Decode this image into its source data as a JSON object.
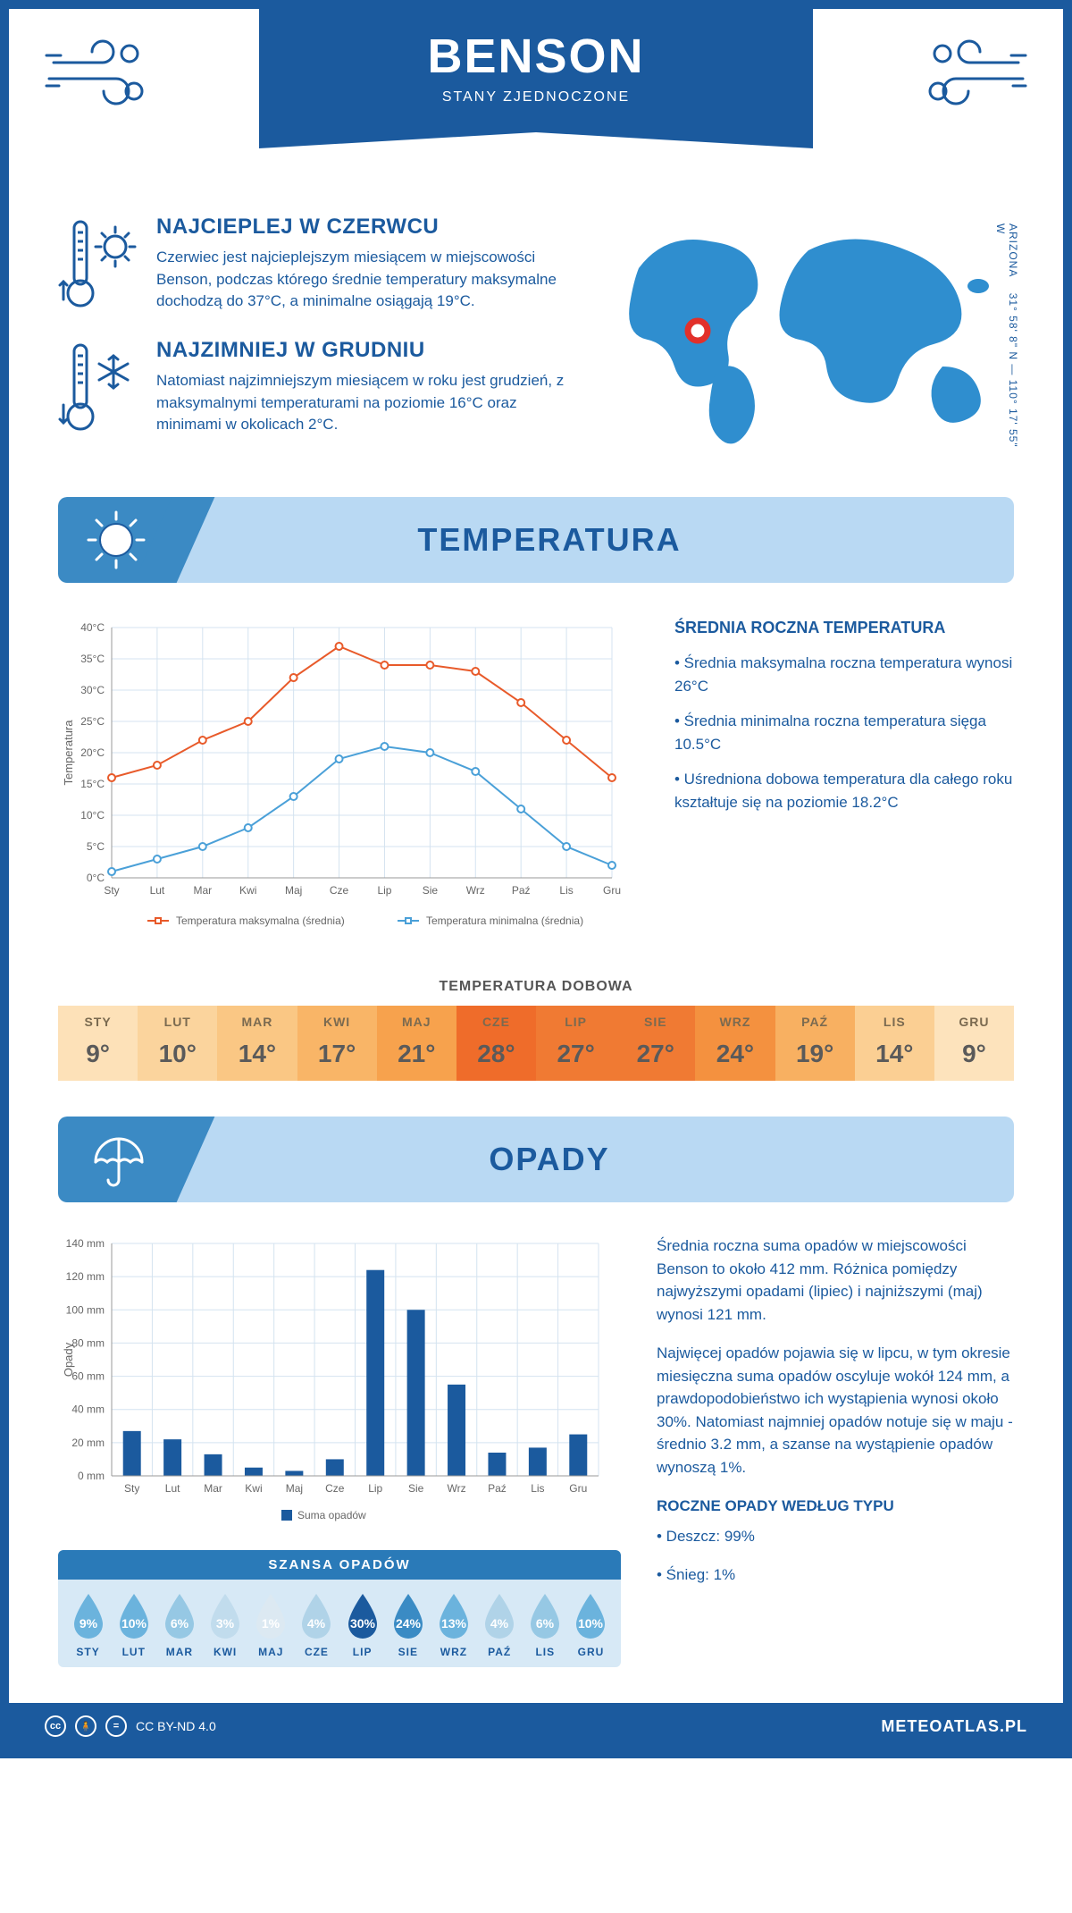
{
  "header": {
    "title": "BENSON",
    "subtitle": "STANY ZJEDNOCZONE"
  },
  "coords": "31° 58' 8\" N — 110° 17' 55\" W",
  "region": "ARIZONA",
  "hot": {
    "title": "NAJCIEPLEJ W CZERWCU",
    "text": "Czerwiec jest najcieplejszym miesiącem w miejscowości Benson, podczas którego średnie temperatury maksymalne dochodzą do 37°C, a minimalne osiągają 19°C."
  },
  "cold": {
    "title": "NAJZIMNIEJ W GRUDNIU",
    "text": "Natomiast najzimniejszym miesiącem w roku jest grudzień, z maksymalnymi temperaturami na poziomie 16°C oraz minimami w okolicach 2°C."
  },
  "temp_section": {
    "title": "TEMPERATURA"
  },
  "temp_chart": {
    "months": [
      "Sty",
      "Lut",
      "Mar",
      "Kwi",
      "Maj",
      "Cze",
      "Lip",
      "Sie",
      "Wrz",
      "Paź",
      "Lis",
      "Gru"
    ],
    "ylabel": "Temperatura",
    "ylim": [
      0,
      40
    ],
    "ytick_step": 5,
    "yunit": "°C",
    "max": {
      "label": "Temperatura maksymalna (średnia)",
      "color": "#e85a2a",
      "values": [
        16,
        18,
        22,
        25,
        32,
        37,
        34,
        34,
        33,
        28,
        22,
        16
      ]
    },
    "min": {
      "label": "Temperatura minimalna (średnia)",
      "color": "#4aa0d8",
      "values": [
        1,
        3,
        5,
        8,
        13,
        19,
        21,
        20,
        17,
        11,
        5,
        2
      ]
    },
    "grid_color": "#d4e3f0",
    "bg": "#ffffff",
    "marker": "circle",
    "line_width": 2
  },
  "temp_side": {
    "title": "ŚREDNIA ROCZNA TEMPERATURA",
    "bullets": [
      "• Średnia maksymalna roczna temperatura wynosi 26°C",
      "• Średnia minimalna roczna temperatura sięga 10.5°C",
      "• Uśredniona dobowa temperatura dla całego roku kształtuje się na poziomie 18.2°C"
    ]
  },
  "daily": {
    "title": "TEMPERATURA DOBOWA",
    "months": [
      "STY",
      "LUT",
      "MAR",
      "KWI",
      "MAJ",
      "CZE",
      "LIP",
      "SIE",
      "WRZ",
      "PAŹ",
      "LIS",
      "GRU"
    ],
    "values": [
      "9°",
      "10°",
      "14°",
      "17°",
      "21°",
      "28°",
      "27°",
      "27°",
      "24°",
      "19°",
      "14°",
      "9°"
    ],
    "colors": [
      "#fde1b8",
      "#fbd49d",
      "#fac784",
      "#f9b567",
      "#f7a24d",
      "#ef6c2a",
      "#f07a33",
      "#f07a33",
      "#f4913f",
      "#f8b061",
      "#fbcf93",
      "#fde3bc"
    ]
  },
  "precip_section": {
    "title": "OPADY"
  },
  "precip_chart": {
    "months": [
      "Sty",
      "Lut",
      "Mar",
      "Kwi",
      "Maj",
      "Cze",
      "Lip",
      "Sie",
      "Wrz",
      "Paź",
      "Lis",
      "Gru"
    ],
    "ylabel": "Opady",
    "ylim": [
      0,
      140
    ],
    "ytick_step": 20,
    "yunit": " mm",
    "values": [
      27,
      22,
      13,
      5,
      3,
      10,
      124,
      100,
      55,
      14,
      17,
      25
    ],
    "bar_color": "#1b5a9e",
    "grid_color": "#d4e3f0",
    "legend": "Suma opadów"
  },
  "precip_text": {
    "p1": "Średnia roczna suma opadów w miejscowości Benson to około 412 mm. Różnica pomiędzy najwyższymi opadami (lipiec) i najniższymi (maj) wynosi 121 mm.",
    "p2": "Najwięcej opadów pojawia się w lipcu, w tym okresie miesięczna suma opadów oscyluje wokół 124 mm, a prawdopodobieństwo ich wystąpienia wynosi około 30%. Natomiast najmniej opadów notuje się w maju - średnio 3.2 mm, a szanse na wystąpienie opadów wynoszą 1%.",
    "type_title": "ROCZNE OPADY WEDŁUG TYPU",
    "type_bullets": [
      "• Deszcz: 99%",
      "• Śnieg: 1%"
    ]
  },
  "chance": {
    "title": "SZANSA OPADÓW",
    "months": [
      "STY",
      "LUT",
      "MAR",
      "KWI",
      "MAJ",
      "CZE",
      "LIP",
      "SIE",
      "WRZ",
      "PAŹ",
      "LIS",
      "GRU"
    ],
    "pct": [
      "9%",
      "10%",
      "6%",
      "3%",
      "1%",
      "4%",
      "30%",
      "24%",
      "13%",
      "4%",
      "6%",
      "10%"
    ],
    "colors": [
      "#6bb3dd",
      "#6bb3dd",
      "#96c8e4",
      "#c1dced",
      "#dce9f2",
      "#b0d3e8",
      "#1b5a9e",
      "#3a8bc4",
      "#6bb3dd",
      "#b0d3e8",
      "#96c8e4",
      "#6bb3dd"
    ]
  },
  "footer": {
    "license": "CC BY-ND 4.0",
    "site": "METEOATLAS.PL"
  }
}
